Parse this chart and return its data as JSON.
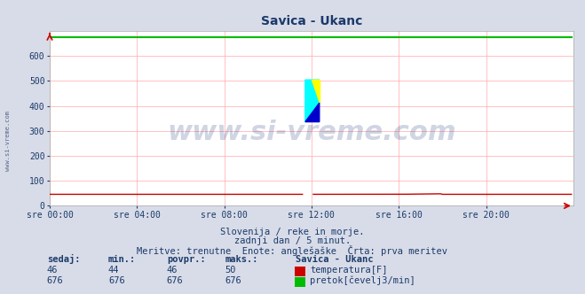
{
  "title": "Savica - Ukanc",
  "bg_color": "#d8dce8",
  "plot_bg_color": "#ffffff",
  "grid_color": "#ffaaaa",
  "text_color": "#1a3a6a",
  "watermark_text": "www.si-vreme.com",
  "watermark_color": "#2a4080",
  "xlabel_ticks": [
    "sre 00:00",
    "sre 04:00",
    "sre 08:00",
    "sre 12:00",
    "sre 16:00",
    "sre 20:00"
  ],
  "ylabel_values": [
    0,
    100,
    200,
    300,
    400,
    500,
    600
  ],
  "ylim": [
    0,
    700
  ],
  "xlim": [
    0,
    288
  ],
  "tick_positions": [
    0,
    48,
    96,
    144,
    192,
    240
  ],
  "temp_color": "#cc0000",
  "flow_color": "#00bb00",
  "temp_value": 46,
  "flow_value": 676,
  "flow_min": 676,
  "flow_max": 676,
  "flow_avg": 676,
  "temp_min": 44,
  "temp_max": 50,
  "temp_avg": 46,
  "subtitle1": "Slovenija / reke in morje.",
  "subtitle2": "zadnji dan / 5 minut.",
  "subtitle3": "Meritve: trenutne  Enote: anglešaške  Črta: prva meritev",
  "legend_title": "Savica - Ukanc",
  "legend1": "temperatura[F]",
  "legend2": "pretok[čevelj3/min]",
  "arrow_color": "#cc0000",
  "total_points": 288,
  "left_watermark": "www.si-vreme.com"
}
